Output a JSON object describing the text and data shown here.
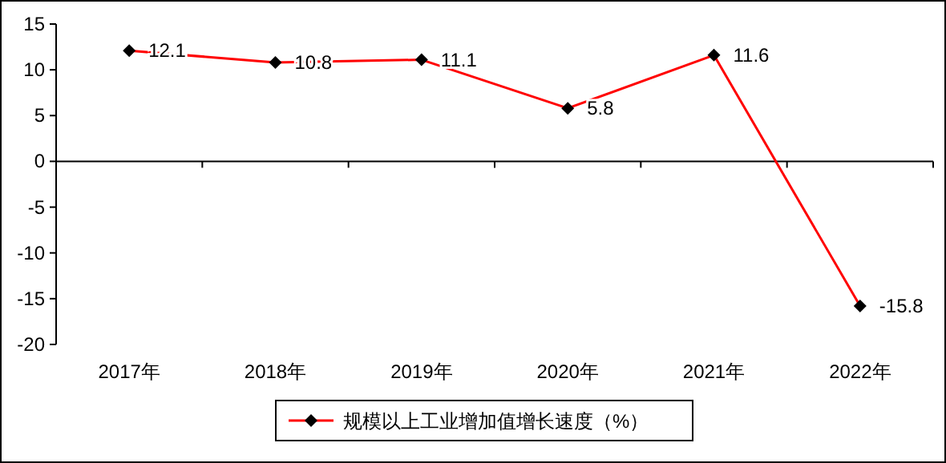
{
  "chart_data": {
    "type": "line",
    "categories": [
      "2017年",
      "2018年",
      "2019年",
      "2020年",
      "2021年",
      "2022年"
    ],
    "series": [
      {
        "name": "规模以上工业增加值增长速度（%）",
        "color": "#ff0000",
        "values": [
          12.1,
          10.8,
          11.1,
          5.8,
          11.6,
          -15.8
        ]
      }
    ],
    "ylim": [
      -20,
      15
    ],
    "yticks": [
      -20,
      -15,
      -10,
      -5,
      0,
      5,
      10,
      15
    ],
    "data_labels": true,
    "marker": "diamond",
    "legend": "bottom"
  }
}
